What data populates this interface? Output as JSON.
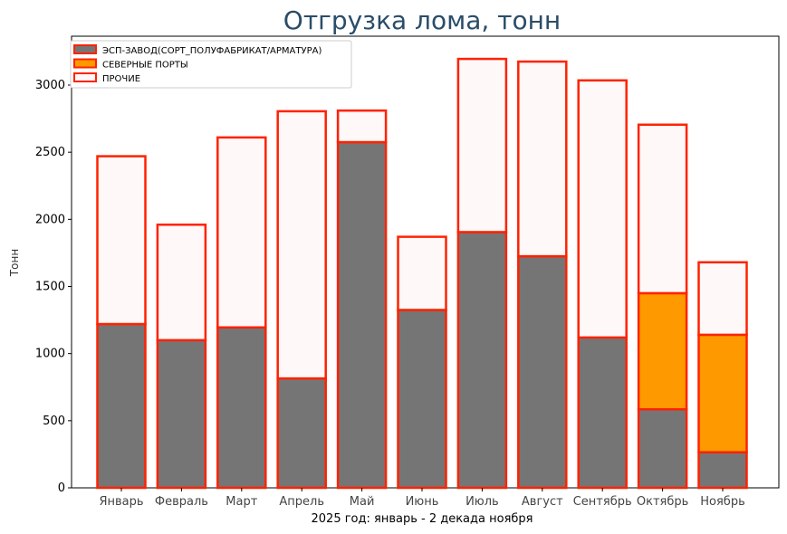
{
  "chart_data": {
    "type": "bar",
    "stacked": true,
    "title": "Отгрузка лома, тонн",
    "xlabel": "2025 год: январь - 2 декада ноября",
    "ylabel": "Тонн",
    "ylim": [
      0,
      3350
    ],
    "yticks": [
      0,
      500,
      1000,
      1500,
      2000,
      2500,
      3000
    ],
    "legend_position": "top-left",
    "categories": [
      "Январь",
      "Февраль",
      "Март",
      "Апрель",
      "Май",
      "Июнь",
      "Июль",
      "Август",
      "Сентябрь",
      "Октябрь",
      "Ноябрь"
    ],
    "series": [
      {
        "name": "ЭСП-ЗАВОД(СОРТ_ПОЛУФАБРИКАТ/АРМАТУРА)",
        "color": "#757575",
        "values": [
          1220,
          1100,
          1195,
          815,
          2575,
          1325,
          1905,
          1725,
          1120,
          585,
          265
        ]
      },
      {
        "name": "СЕВЕРНЫЕ ПОРТЫ",
        "color": "#ff9900",
        "values": [
          0,
          0,
          0,
          0,
          0,
          0,
          0,
          0,
          0,
          865,
          875
        ]
      },
      {
        "name": "ПРОЧИЕ",
        "color": "#fff8f8",
        "values": [
          1250,
          860,
          1415,
          1990,
          235,
          545,
          1290,
          1450,
          1915,
          1255,
          540
        ]
      }
    ],
    "edge_color": "#ff2200"
  }
}
